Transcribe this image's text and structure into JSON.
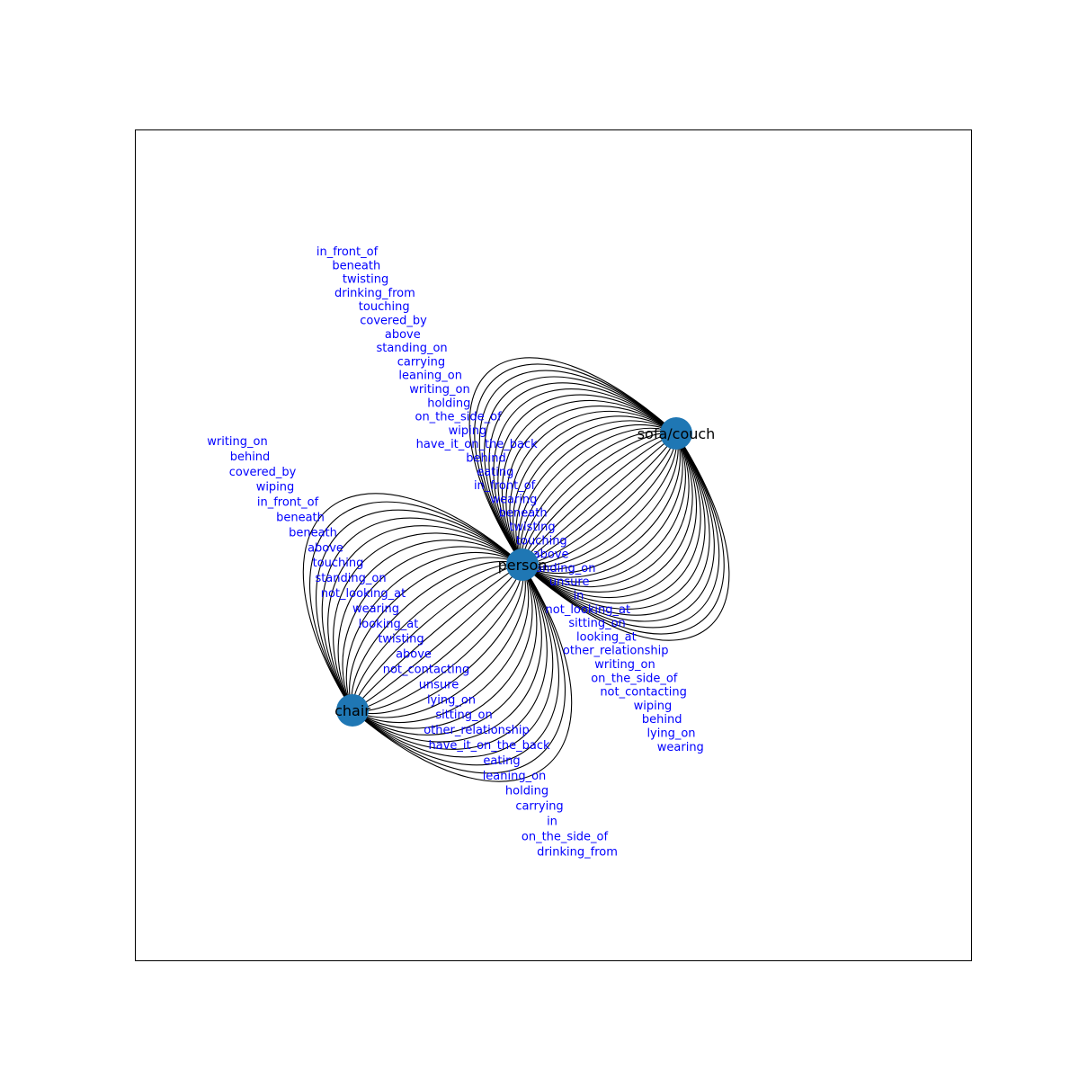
{
  "colors": {
    "node_fill": "#1f77b4",
    "edge_stroke": "#000000",
    "edge_label": "#0000ff",
    "node_label": "#000000",
    "frame": "#000000"
  },
  "nodes": [
    {
      "id": "sofa",
      "label": "sofa/couch"
    },
    {
      "id": "person",
      "label": "person"
    },
    {
      "id": "chair",
      "label": "chair"
    }
  ],
  "edges": [
    {
      "source": "person",
      "target": "sofa",
      "labels": [
        "in_front_of",
        "beneath",
        "twisting",
        "drinking_from",
        "touching",
        "covered_by",
        "above",
        "standing_on",
        "carrying",
        "leaning_on",
        "writing_on",
        "holding",
        "on_the_side_of",
        "wiping",
        "have_it_on_the_back",
        "behind",
        "eating",
        "in_front_of",
        "wearing",
        "beneath",
        "twisting",
        "touching",
        "above",
        "standing_on",
        "unsure",
        "in",
        "not_looking_at",
        "sitting_on",
        "looking_at",
        "other_relationship",
        "writing_on",
        "on_the_side_of",
        "not_contacting",
        "wiping",
        "behind",
        "lying_on",
        "wearing"
      ]
    },
    {
      "source": "person",
      "target": "chair",
      "labels": [
        "writing_on",
        "behind",
        "covered_by",
        "wiping",
        "in_front_of",
        "beneath",
        "beneath",
        "above",
        "touching",
        "standing_on",
        "not_looking_at",
        "wearing",
        "looking_at",
        "twisting",
        "above",
        "not_contacting",
        "unsure",
        "lying_on",
        "sitting_on",
        "other_relationship",
        "have_it_on_the_back",
        "eating",
        "leaning_on",
        "holding",
        "carrying",
        "in",
        "on_the_side_of",
        "drinking_from"
      ]
    }
  ]
}
